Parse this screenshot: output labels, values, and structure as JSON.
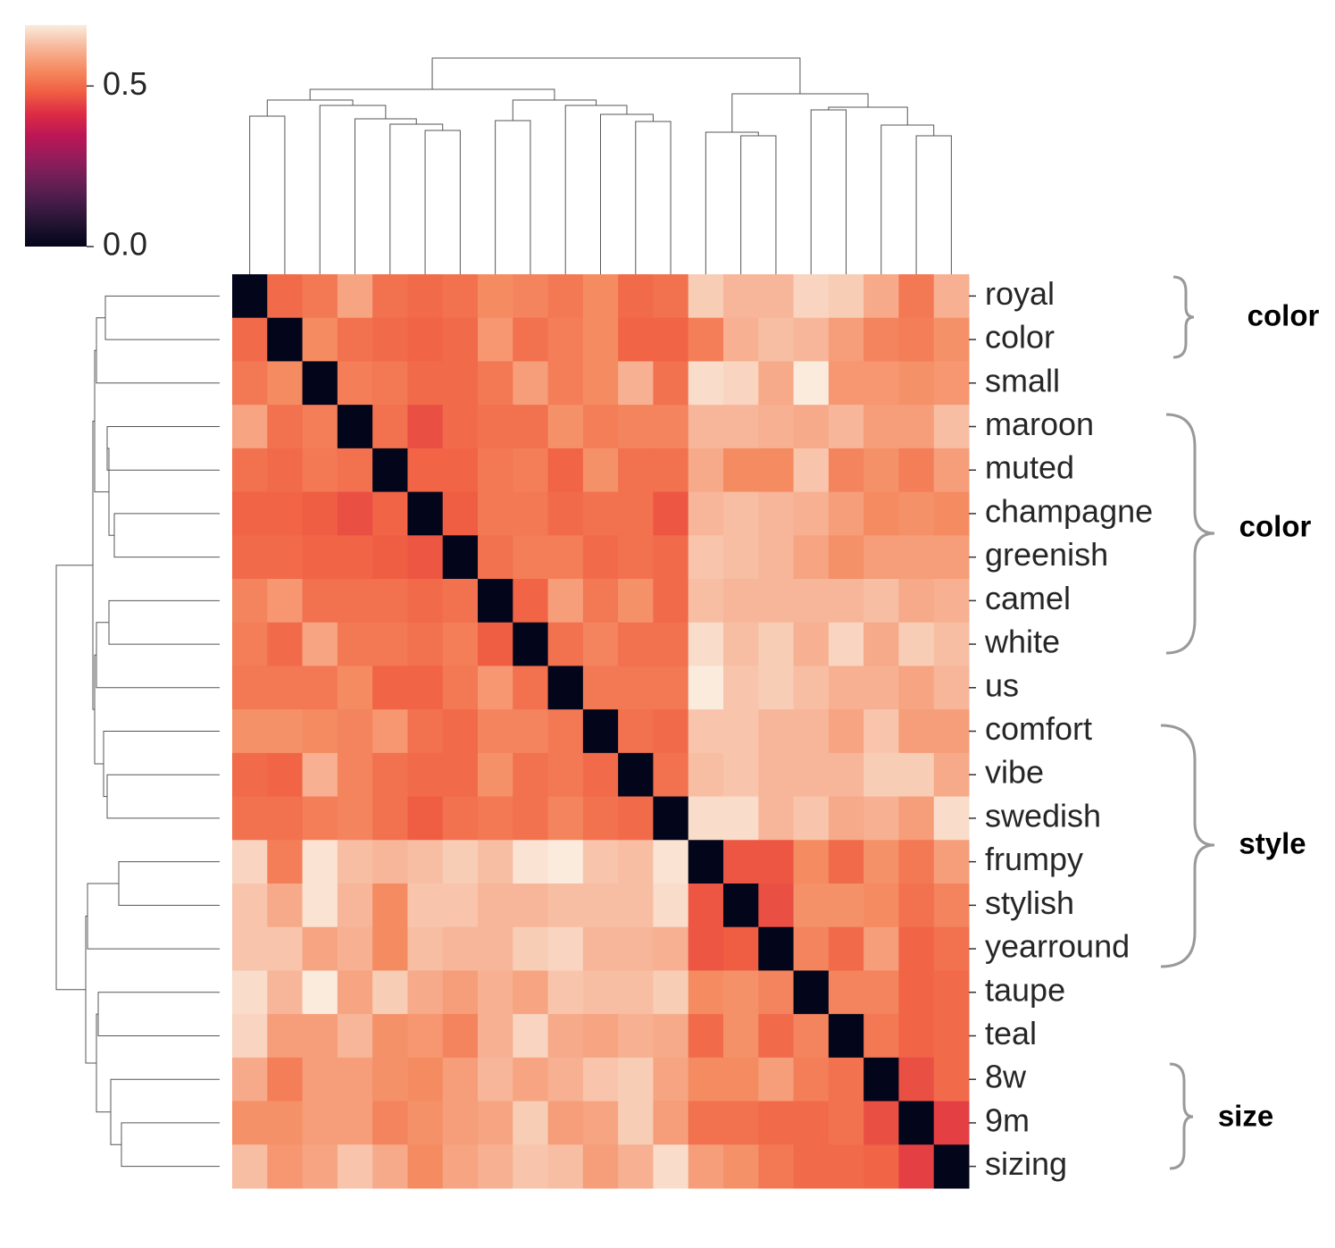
{
  "chart_data": {
    "type": "clustermap",
    "categories": [
      "royal",
      "color",
      "small",
      "maroon",
      "muted",
      "champagne",
      "greenish",
      "camel",
      "white",
      "us",
      "comfort",
      "vibe",
      "swedish",
      "frumpy",
      "stylish",
      "yearround",
      "taupe",
      "teal",
      "8w",
      "9m",
      "sizing"
    ],
    "values": [
      [
        0,
        0.5,
        0.52,
        0.59,
        0.51,
        0.5,
        0.51,
        0.55,
        0.54,
        0.52,
        0.55,
        0.5,
        0.51,
        0.65,
        0.62,
        0.62,
        0.66,
        0.65,
        0.6,
        0.52,
        0.61
      ],
      [
        0.5,
        0,
        0.55,
        0.51,
        0.5,
        0.49,
        0.5,
        0.57,
        0.51,
        0.53,
        0.55,
        0.49,
        0.49,
        0.53,
        0.61,
        0.63,
        0.62,
        0.58,
        0.54,
        0.53,
        0.56
      ],
      [
        0.52,
        0.55,
        0,
        0.53,
        0.52,
        0.5,
        0.5,
        0.52,
        0.58,
        0.53,
        0.55,
        0.61,
        0.51,
        0.67,
        0.66,
        0.6,
        0.69,
        0.57,
        0.57,
        0.56,
        0.57
      ],
      [
        0.59,
        0.51,
        0.53,
        0,
        0.51,
        0.46,
        0.5,
        0.51,
        0.51,
        0.56,
        0.53,
        0.54,
        0.54,
        0.62,
        0.62,
        0.61,
        0.6,
        0.62,
        0.58,
        0.58,
        0.63
      ],
      [
        0.51,
        0.5,
        0.52,
        0.51,
        0,
        0.49,
        0.49,
        0.52,
        0.53,
        0.49,
        0.56,
        0.51,
        0.51,
        0.6,
        0.55,
        0.55,
        0.64,
        0.54,
        0.56,
        0.53,
        0.58
      ],
      [
        0.49,
        0.49,
        0.48,
        0.46,
        0.49,
        0,
        0.48,
        0.52,
        0.52,
        0.5,
        0.51,
        0.51,
        0.47,
        0.62,
        0.63,
        0.62,
        0.61,
        0.58,
        0.55,
        0.56,
        0.55
      ],
      [
        0.5,
        0.5,
        0.49,
        0.49,
        0.48,
        0.47,
        0,
        0.51,
        0.53,
        0.53,
        0.5,
        0.51,
        0.5,
        0.64,
        0.63,
        0.62,
        0.59,
        0.56,
        0.58,
        0.58,
        0.58
      ],
      [
        0.54,
        0.57,
        0.51,
        0.51,
        0.51,
        0.5,
        0.51,
        0,
        0.49,
        0.58,
        0.52,
        0.56,
        0.5,
        0.63,
        0.62,
        0.62,
        0.62,
        0.62,
        0.63,
        0.6,
        0.61
      ],
      [
        0.53,
        0.5,
        0.59,
        0.52,
        0.52,
        0.51,
        0.53,
        0.48,
        0,
        0.51,
        0.54,
        0.51,
        0.51,
        0.67,
        0.63,
        0.65,
        0.61,
        0.66,
        0.6,
        0.65,
        0.63
      ],
      [
        0.52,
        0.52,
        0.52,
        0.55,
        0.49,
        0.49,
        0.52,
        0.57,
        0.51,
        0,
        0.52,
        0.52,
        0.52,
        0.69,
        0.64,
        0.65,
        0.63,
        0.61,
        0.61,
        0.59,
        0.62
      ],
      [
        0.56,
        0.56,
        0.55,
        0.54,
        0.57,
        0.51,
        0.5,
        0.54,
        0.54,
        0.52,
        0,
        0.51,
        0.5,
        0.64,
        0.64,
        0.62,
        0.62,
        0.59,
        0.64,
        0.58,
        0.58
      ],
      [
        0.5,
        0.49,
        0.61,
        0.54,
        0.51,
        0.5,
        0.5,
        0.56,
        0.51,
        0.52,
        0.5,
        0,
        0.51,
        0.63,
        0.64,
        0.62,
        0.62,
        0.62,
        0.65,
        0.65,
        0.6
      ],
      [
        0.51,
        0.51,
        0.53,
        0.54,
        0.51,
        0.48,
        0.51,
        0.52,
        0.51,
        0.54,
        0.51,
        0.5,
        0,
        0.67,
        0.67,
        0.62,
        0.64,
        0.6,
        0.61,
        0.58,
        0.67
      ],
      [
        0.66,
        0.53,
        0.68,
        0.63,
        0.62,
        0.63,
        0.65,
        0.63,
        0.68,
        0.69,
        0.64,
        0.63,
        0.68,
        0,
        0.47,
        0.47,
        0.55,
        0.5,
        0.56,
        0.52,
        0.58
      ],
      [
        0.64,
        0.6,
        0.68,
        0.62,
        0.55,
        0.64,
        0.64,
        0.62,
        0.62,
        0.63,
        0.63,
        0.63,
        0.67,
        0.47,
        0,
        0.46,
        0.56,
        0.56,
        0.55,
        0.51,
        0.54
      ],
      [
        0.64,
        0.64,
        0.59,
        0.61,
        0.55,
        0.63,
        0.62,
        0.62,
        0.65,
        0.66,
        0.62,
        0.62,
        0.61,
        0.47,
        0.48,
        0,
        0.54,
        0.5,
        0.58,
        0.49,
        0.51
      ],
      [
        0.67,
        0.62,
        0.69,
        0.59,
        0.65,
        0.6,
        0.58,
        0.61,
        0.59,
        0.64,
        0.63,
        0.63,
        0.65,
        0.55,
        0.56,
        0.54,
        0,
        0.54,
        0.54,
        0.49,
        0.5
      ],
      [
        0.66,
        0.58,
        0.58,
        0.62,
        0.56,
        0.57,
        0.54,
        0.61,
        0.66,
        0.6,
        0.59,
        0.61,
        0.6,
        0.5,
        0.56,
        0.5,
        0.54,
        0,
        0.52,
        0.49,
        0.5
      ],
      [
        0.6,
        0.53,
        0.58,
        0.58,
        0.56,
        0.55,
        0.58,
        0.62,
        0.59,
        0.61,
        0.64,
        0.65,
        0.59,
        0.55,
        0.55,
        0.58,
        0.53,
        0.51,
        0,
        0.46,
        0.5
      ],
      [
        0.56,
        0.56,
        0.58,
        0.58,
        0.54,
        0.56,
        0.58,
        0.59,
        0.65,
        0.58,
        0.59,
        0.65,
        0.58,
        0.51,
        0.51,
        0.5,
        0.5,
        0.51,
        0.46,
        0,
        0.44
      ],
      [
        0.63,
        0.57,
        0.59,
        0.64,
        0.6,
        0.55,
        0.59,
        0.61,
        0.64,
        0.63,
        0.58,
        0.61,
        0.67,
        0.58,
        0.56,
        0.52,
        0.5,
        0.5,
        0.49,
        0.44,
        0
      ]
    ],
    "colormap": [
      "#03051a",
      "#221331",
      "#451c47",
      "#6c1f56",
      "#951c5b",
      "#bc1656",
      "#dd2c45",
      "#f06043",
      "#f58c62",
      "#f7b79a",
      "#faebdd"
    ],
    "vlim": [
      0,
      0.69
    ],
    "cticks": [
      {
        "value": 0,
        "label": "0.0"
      },
      {
        "value": 0.5,
        "label": "0.5"
      }
    ],
    "annotations": [
      "color",
      "color",
      "style",
      "size"
    ]
  }
}
